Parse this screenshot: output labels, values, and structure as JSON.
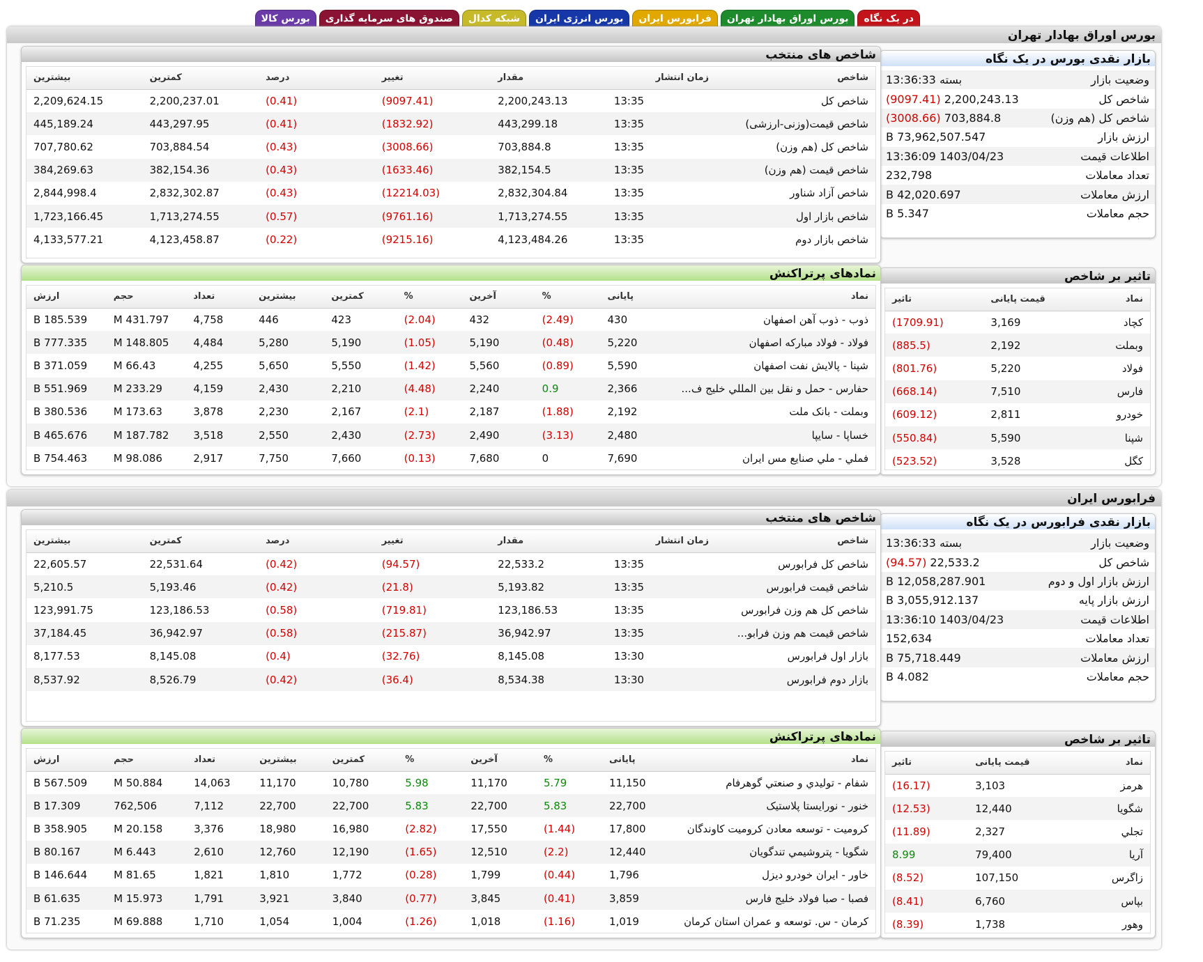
{
  "tabs": [
    {
      "label": "در یک نگاه",
      "color": "#c2141a"
    },
    {
      "label": "بورس اوراق بهادار تهران",
      "color": "#1d8a2c"
    },
    {
      "label": "فرابورس ایران",
      "color": "#e0a800"
    },
    {
      "label": "بورس انرژی ایران",
      "color": "#1637a8"
    },
    {
      "label": "شبکه کدال",
      "color": "#c6b92a"
    },
    {
      "label": "صندوق های سرمایه گذاری",
      "color": "#8a1232"
    },
    {
      "label": "بورس کالا",
      "color": "#6a3aa8"
    }
  ],
  "tse": {
    "title": "بورس اوراق بهادار تهران",
    "summary": {
      "title": "بازار نقدی بورس در یک نگاه",
      "rows": [
        {
          "label": "وضعیت بازار",
          "value": "بسته 13:36:33"
        },
        {
          "label": "شاخص کل",
          "value": "2,200,243.13",
          "change": "(9097.41)"
        },
        {
          "label": "شاخص کل (هم وزن)",
          "value": "703,884.8",
          "change": "(3008.66)"
        },
        {
          "label": "ارزش بازار",
          "value": "73,962,507.547 B"
        },
        {
          "label": "اطلاعات قیمت",
          "value": "1403/04/23 13:36:09"
        },
        {
          "label": "تعداد معاملات",
          "value": "232,798"
        },
        {
          "label": "ارزش معاملات",
          "value": "42,020.697 B"
        },
        {
          "label": "حجم معاملات",
          "value": "5.347 B"
        }
      ]
    },
    "indices": {
      "title": "شاخص های منتخب",
      "headers": [
        "شاخص",
        "زمان انتشار",
        "مقدار",
        "تغییر",
        "درصد",
        "کمترین",
        "بیشترین"
      ],
      "rows": [
        [
          "شاخص کل",
          "13:35",
          "2,200,243.13",
          "(9097.41)",
          "(0.41)",
          "2,200,237.01",
          "2,209,624.15"
        ],
        [
          "شاخص قیمت(وزنی-ارزشی)",
          "13:35",
          "443,299.18",
          "(1832.92)",
          "(0.41)",
          "443,297.95",
          "445,189.24"
        ],
        [
          "شاخص کل (هم وزن)",
          "13:35",
          "703,884.8",
          "(3008.66)",
          "(0.43)",
          "703,884.54",
          "707,780.62"
        ],
        [
          "شاخص قیمت (هم وزن)",
          "13:35",
          "382,154.5",
          "(1633.46)",
          "(0.43)",
          "382,154.36",
          "384,269.63"
        ],
        [
          "شاخص آزاد شناور",
          "13:35",
          "2,832,304.84",
          "(12214.03)",
          "(0.43)",
          "2,832,302.87",
          "2,844,998.4"
        ],
        [
          "شاخص بازار اول",
          "13:35",
          "1,713,274.55",
          "(9761.16)",
          "(0.57)",
          "1,713,274.55",
          "1,723,166.45"
        ],
        [
          "شاخص بازار دوم",
          "13:35",
          "4,123,484.26",
          "(9215.16)",
          "(0.22)",
          "4,123,458.87",
          "4,133,577.21"
        ]
      ]
    },
    "impact": {
      "title": "تاثیر بر شاخص",
      "headers": [
        "نماد",
        "قیمت پایانی",
        "تاثیر"
      ],
      "rows": [
        [
          "کچاد",
          "3,169",
          "(1709.91)"
        ],
        [
          "وبملت",
          "2,192",
          "(885.5)"
        ],
        [
          "فولاد",
          "5,220",
          "(801.76)"
        ],
        [
          "فارس",
          "7,510",
          "(668.14)"
        ],
        [
          "خودرو",
          "2,811",
          "(609.12)"
        ],
        [
          "شپنا",
          "5,590",
          "(550.84)"
        ],
        [
          "کگل",
          "3,528",
          "(523.52)"
        ]
      ]
    },
    "active": {
      "title": "نمادهای پرتراکنش",
      "headers": [
        "نماد",
        "پایانی",
        "%",
        "آخرین",
        "%",
        "کمترین",
        "بیشترین",
        "تعداد",
        "حجم",
        "ارزش"
      ],
      "rows": [
        [
          "ذوب - ذوب آهن اصفهان",
          "430",
          "(2.49)",
          "432",
          "(2.04)",
          "423",
          "446",
          "4,758",
          "431.797 M",
          "185.539 B"
        ],
        [
          "فولاد - فولاد مبارکه اصفهان",
          "5,220",
          "(0.48)",
          "5,190",
          "(1.05)",
          "5,190",
          "5,280",
          "4,484",
          "148.805 M",
          "777.335 B"
        ],
        [
          "شپنا - پالایش نفت اصفهان",
          "5,590",
          "(0.89)",
          "5,560",
          "(1.42)",
          "5,550",
          "5,650",
          "4,255",
          "66.43 M",
          "371.059 B"
        ],
        [
          "حفارس - حمل و نقل بين المللي خليج ف...",
          "2,366",
          "0.9",
          "2,240",
          "(4.48)",
          "2,210",
          "2,430",
          "4,159",
          "233.29 M",
          "551.969 B"
        ],
        [
          "وبملت - بانک ملت",
          "2,192",
          "(1.88)",
          "2,187",
          "(2.1)",
          "2,167",
          "2,230",
          "3,878",
          "173.63 M",
          "380.536 B"
        ],
        [
          "خساپا - سايپا",
          "2,480",
          "(3.13)",
          "2,490",
          "(2.73)",
          "2,430",
          "2,550",
          "3,518",
          "187.782 M",
          "465.676 B"
        ],
        [
          "فملي - ملي صنايع مس ايران",
          "7,690",
          "0",
          "7,680",
          "(0.13)",
          "7,660",
          "7,750",
          "2,917",
          "98.086 M",
          "754.463 B"
        ]
      ]
    }
  },
  "ifb": {
    "title": "فرابورس ایران",
    "summary": {
      "title": "بازار نقدی فرابورس در یک نگاه",
      "rows": [
        {
          "label": "وضعیت بازار",
          "value": "بسته 13:36:33"
        },
        {
          "label": "شاخص کل",
          "value": "22,533.2",
          "change": "(94.57)"
        },
        {
          "label": "ارزش بازار اول و دوم",
          "value": "12,058,287.901 B"
        },
        {
          "label": "ارزش بازار پایه",
          "value": "3,055,912.137 B"
        },
        {
          "label": "اطلاعات قیمت",
          "value": "1403/04/23 13:36:10"
        },
        {
          "label": "تعداد معاملات",
          "value": "152,634"
        },
        {
          "label": "ارزش معاملات",
          "value": "75,718.449 B"
        },
        {
          "label": "حجم معاملات",
          "value": "4.082 B"
        }
      ]
    },
    "indices": {
      "title": "شاخص های منتخب",
      "headers": [
        "شاخص",
        "زمان انتشار",
        "مقدار",
        "تغییر",
        "درصد",
        "کمترین",
        "بیشترین"
      ],
      "rows": [
        [
          "شاخص کل فرابورس",
          "13:35",
          "22,533.2",
          "(94.57)",
          "(0.42)",
          "22,531.64",
          "22,605.57"
        ],
        [
          "شاخص قیمت فرابورس",
          "13:35",
          "5,193.82",
          "(21.8)",
          "(0.42)",
          "5,193.46",
          "5,210.5"
        ],
        [
          "شاخص کل هم وزن فرابورس",
          "13:35",
          "123,186.53",
          "(719.81)",
          "(0.58)",
          "123,186.53",
          "123,991.75"
        ],
        [
          "شاخص قیمت هم وزن فرابو...",
          "13:35",
          "36,942.97",
          "(215.87)",
          "(0.58)",
          "36,942.97",
          "37,184.45"
        ],
        [
          "بازار اول فرابورس",
          "13:30",
          "8,145.08",
          "(32.76)",
          "(0.4)",
          "8,145.08",
          "8,177.53"
        ],
        [
          "بازار دوم فرابورس",
          "13:30",
          "8,534.38",
          "(36.4)",
          "(0.42)",
          "8,526.79",
          "8,537.92"
        ]
      ]
    },
    "impact": {
      "title": "تاثیر بر شاخص",
      "headers": [
        "نماد",
        "قیمت پایانی",
        "تاثیر"
      ],
      "rows": [
        [
          "هرمز",
          "3,103",
          "(16.17)"
        ],
        [
          "شگویا",
          "12,440",
          "(12.53)"
        ],
        [
          "تجلي",
          "2,327",
          "(11.89)"
        ],
        [
          "آریا",
          "79,400",
          "8.99"
        ],
        [
          "زاگرس",
          "107,150",
          "(8.52)"
        ],
        [
          "بپاس",
          "6,760",
          "(8.41)"
        ],
        [
          "وهور",
          "1,738",
          "(8.39)"
        ]
      ]
    },
    "active": {
      "title": "نمادهای پرتراکنش",
      "headers": [
        "نماد",
        "پایانی",
        "%",
        "آخرین",
        "%",
        "کمترین",
        "بیشترین",
        "تعداد",
        "حجم",
        "ارزش"
      ],
      "rows": [
        [
          "شفام - توليدي و صنعتي گوهرفام",
          "11,150",
          "5.79",
          "11,170",
          "5.98",
          "10,780",
          "11,170",
          "14,063",
          "50.884 M",
          "567.509 B"
        ],
        [
          "خنور - نورایستا پلاستیک",
          "22,700",
          "5.83",
          "22,700",
          "5.83",
          "22,700",
          "22,700",
          "7,112",
          "762,506",
          "17.309 B"
        ],
        [
          "كروميت - توسعه معادن كروميت كاوندگان",
          "17,800",
          "(1.44)",
          "17,550",
          "(2.82)",
          "16,980",
          "18,980",
          "3,376",
          "20.158 M",
          "358.905 B"
        ],
        [
          "شگویا - پتروشیمي تندگويان",
          "12,440",
          "(2.2)",
          "12,510",
          "(1.65)",
          "12,190",
          "12,760",
          "2,610",
          "6.443 M",
          "80.167 B"
        ],
        [
          "خاور - ايران خودرو ديزل",
          "1,796",
          "(0.44)",
          "1,799",
          "(0.28)",
          "1,772",
          "1,810",
          "1,821",
          "81.65 M",
          "146.644 B"
        ],
        [
          "فصبا - صبا فولاد خليج فارس",
          "3,859",
          "(0.41)",
          "3,845",
          "(0.77)",
          "3,840",
          "3,921",
          "1,791",
          "15.973 M",
          "61.635 B"
        ],
        [
          "كرمان - س. توسعه و عمران استان كرمان",
          "1,019",
          "(1.16)",
          "1,018",
          "(1.26)",
          "1,004",
          "1,054",
          "1,710",
          "69.888 M",
          "71.235 B"
        ]
      ]
    }
  }
}
